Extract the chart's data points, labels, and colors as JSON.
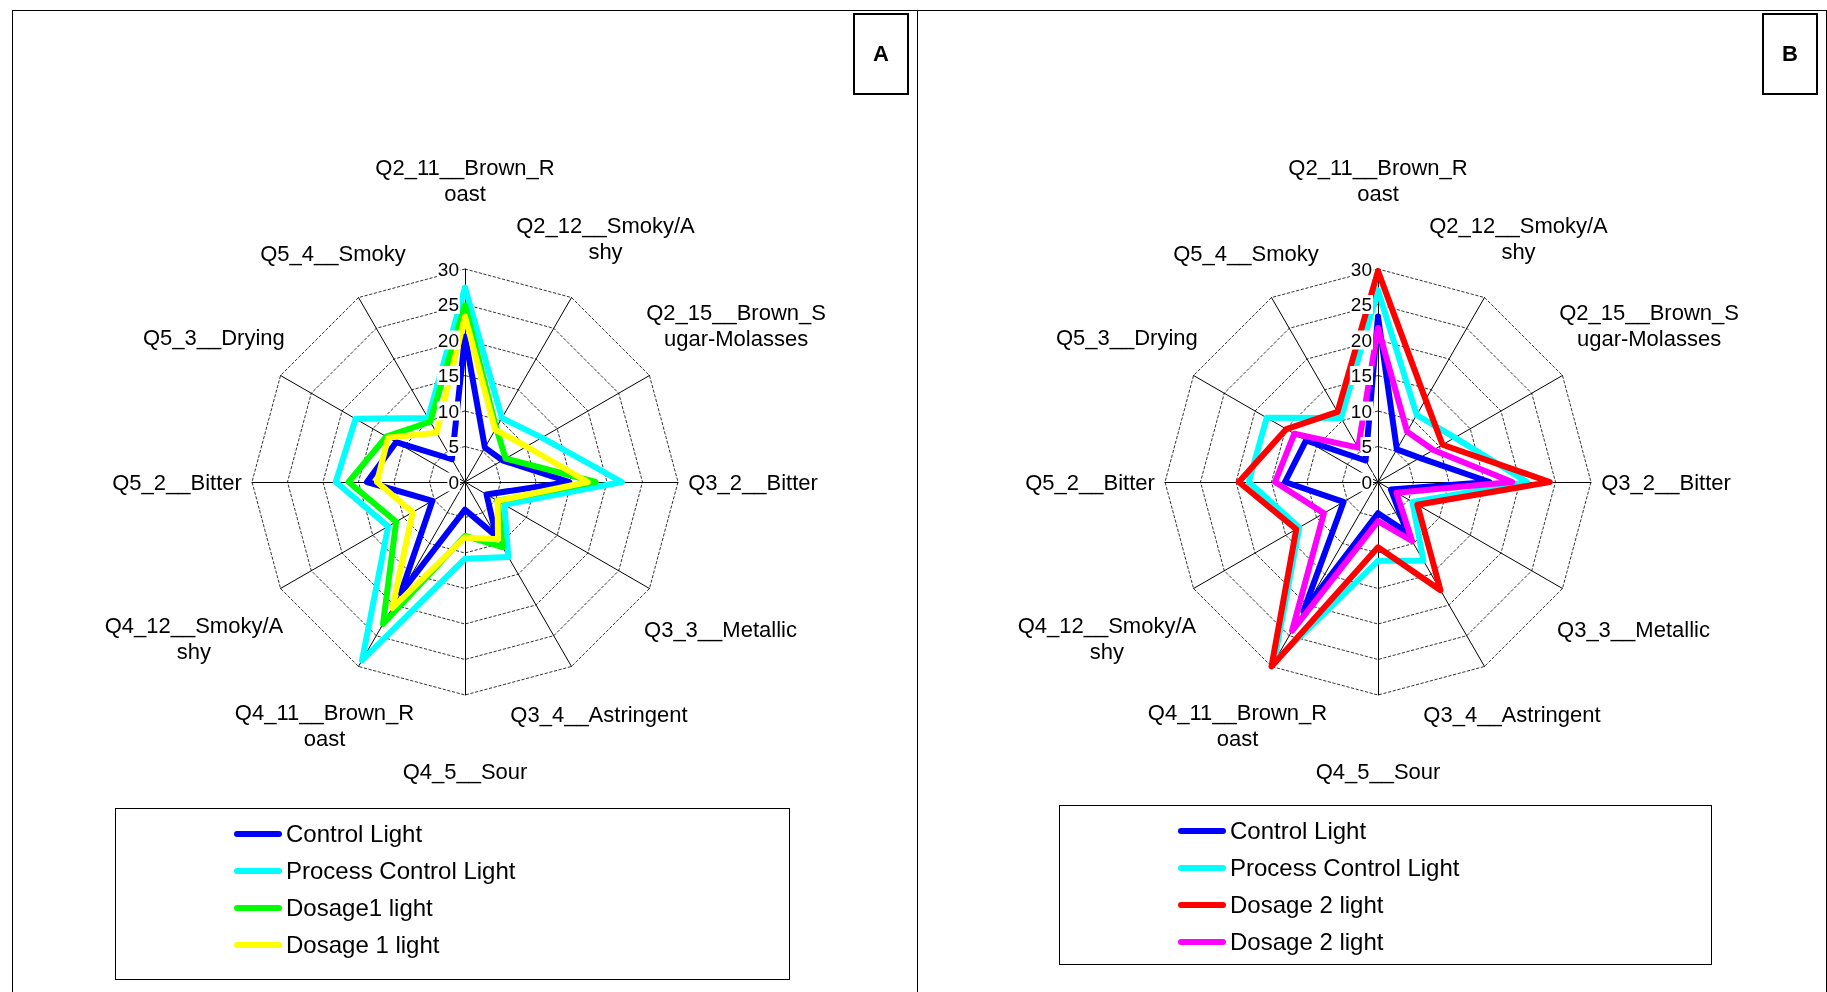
{
  "chart_data": [
    {
      "type": "radar",
      "annotations": [
        "A"
      ],
      "categories": [
        "Q2_11__Brown_Roast",
        "Q2_12__Smoky/Ashy",
        "Q2_15__Brown_Sugar-Molasses",
        "Q3_2__Bitter",
        "Q3_3__Metallic",
        "Q3_4__Astringent",
        "Q4_5__Sour",
        "Q4_11__Brown_Roast",
        "Q4_12__Smoky/Ashy",
        "Q5_2__Bitter",
        "Q5_3__Drying",
        "Q5_4__Smoky"
      ],
      "ylim": [
        0,
        30
      ],
      "yticks": [
        0,
        5,
        10,
        15,
        20,
        25,
        30
      ],
      "grid": true,
      "legend": "bottom",
      "marker": "none",
      "line_style": "solid",
      "series": [
        {
          "name": "Control Light",
          "color": "#0000ff",
          "values": [
            20.5,
            5.6,
            6.1,
            14.7,
            3.5,
            8.8,
            3.9,
            18.1,
            5.3,
            13.8,
            11.2,
            3.7
          ]
        },
        {
          "name": "Process Control Light",
          "color": "#00ffff",
          "values": [
            27.4,
            10.4,
            12.5,
            22.1,
            6.4,
            12.2,
            10.8,
            29.0,
            12.5,
            18.2,
            17.8,
            10.4
          ]
        },
        {
          "name": "Dosage1 light",
          "color": "#00ff00",
          "values": [
            24.9,
            8.8,
            6.6,
            18.4,
            5.3,
            10.6,
            7.6,
            23.1,
            11.2,
            16.4,
            12.8,
            9.8
          ]
        },
        {
          "name": "Dosage 1 light",
          "color": "#ffff00",
          "values": [
            23.3,
            8.5,
            10.0,
            17.3,
            5.3,
            9.3,
            7.8,
            20.5,
            8.5,
            12.4,
            12.5,
            8.0
          ]
        }
      ]
    },
    {
      "type": "radar",
      "annotations": [
        "B"
      ],
      "categories": [
        "Q2_11__Brown_Roast",
        "Q2_12__Smoky/Ashy",
        "Q2_15__Brown_Sugar-Molasses",
        "Q3_2__Bitter",
        "Q3_3__Metallic",
        "Q3_4__Astringent",
        "Q4_5__Sour",
        "Q4_11__Brown_Roast",
        "Q4_12__Smoky/Ashy",
        "Q5_2__Bitter",
        "Q5_3__Drying",
        "Q5_4__Smoky"
      ],
      "ylim": [
        0,
        30
      ],
      "yticks": [
        0,
        5,
        10,
        15,
        20,
        25,
        30
      ],
      "grid": true,
      "legend": "bottom",
      "marker": "none",
      "line_style": "solid",
      "series": [
        {
          "name": "Control Light",
          "color": "#0000ff",
          "values": [
            23.3,
            5.3,
            6.8,
            15.7,
            2.1,
            8.2,
            4.4,
            21.0,
            5.6,
            13.1,
            11.7,
            3.5
          ]
        },
        {
          "name": "Process Control Light",
          "color": "#00ffff",
          "values": [
            27.0,
            10.9,
            12.5,
            21.0,
            5.6,
            12.8,
            11.1,
            29.3,
            12.8,
            18.2,
            18.1,
            10.4
          ]
        },
        {
          "name": "Dosage 2 light",
          "color": "#ff0000",
          "values": [
            29.7,
            13.4,
            10.5,
            24.2,
            6.4,
            17.6,
            9.2,
            30.0,
            13.3,
            19.6,
            14.9,
            11.4
          ]
        },
        {
          "name": "Dosage 2 light",
          "color": "#ff00ff",
          "values": [
            21.7,
            8.2,
            9.0,
            18.9,
            3.0,
            9.6,
            5.5,
            24.2,
            8.8,
            14.5,
            13.6,
            5.6
          ]
        }
      ]
    }
  ]
}
